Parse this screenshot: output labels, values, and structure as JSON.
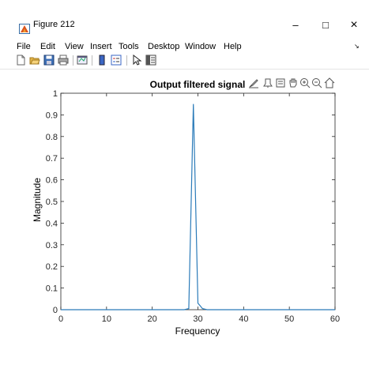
{
  "window": {
    "title": "Figure 212",
    "buttons": {
      "minimize": "–",
      "maximize": "□",
      "close": "×"
    }
  },
  "menu": {
    "items": [
      "File",
      "Edit",
      "View",
      "Insert",
      "Tools",
      "Desktop",
      "Window",
      "Help"
    ],
    "overflow": "↘"
  },
  "toolbar": {
    "icons": [
      "new-figure-icon",
      "open-file-icon",
      "save-icon",
      "print-icon",
      "link-plot-icon",
      "colorbar-icon",
      "legend-icon",
      "pointer-icon",
      "property-inspector-icon"
    ]
  },
  "axes_toolbar": {
    "icons": [
      "brush-icon",
      "datatip-icon",
      "export-icon",
      "pan-icon",
      "zoom-in-icon",
      "zoom-out-icon",
      "home-icon"
    ]
  },
  "chart_data": {
    "type": "line",
    "title": "Output filtered signal",
    "xlabel": "Frequency",
    "ylabel": "Magnitude",
    "xlim": [
      0,
      60
    ],
    "ylim": [
      0,
      1
    ],
    "xticks": [
      "0",
      "10",
      "20",
      "30",
      "40",
      "50",
      "60"
    ],
    "yticks": [
      "0",
      "0.1",
      "0.2",
      "0.3",
      "0.4",
      "0.5",
      "0.6",
      "0.7",
      "0.8",
      "0.9",
      "1"
    ],
    "grid": false,
    "series": [
      {
        "color": "#2b7bb9",
        "x": [
          0,
          27,
          28,
          29,
          30,
          31,
          32,
          60
        ],
        "y": [
          0,
          0,
          0.005,
          0.95,
          0.03,
          0.005,
          0,
          0
        ]
      }
    ]
  }
}
